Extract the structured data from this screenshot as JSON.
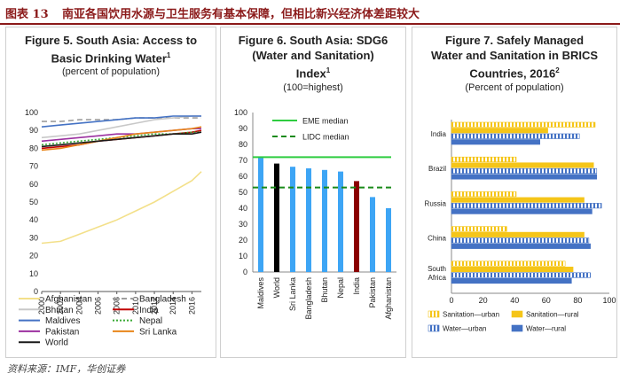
{
  "header": {
    "figure_no": "图表 13",
    "title": "南亚各国饮用水源与卫生服务有基本保障，但相比新兴经济体差距较大"
  },
  "source": "资料来源：IMF，华创证券",
  "chart_data": [
    {
      "type": "line",
      "title": "Figure 5. South Asia: Access to Basic Drinking Water",
      "title_line1": "Figure 5. South Asia: Access to",
      "title_line2": "Basic Drinking Water",
      "title_sup": "1",
      "subtitle": "(percent of population)",
      "x": [
        2000,
        2002,
        2004,
        2006,
        2008,
        2010,
        2012,
        2014,
        2016,
        2017
      ],
      "x_ticks": [
        2000,
        2002,
        2004,
        2006,
        2008,
        2010,
        2012,
        2014,
        2016
      ],
      "ylim": [
        0,
        100
      ],
      "y_ticks": [
        0,
        10,
        20,
        30,
        40,
        50,
        60,
        70,
        80,
        90,
        100
      ],
      "series": [
        {
          "name": "Afghanistan",
          "color": "#f3e08a",
          "dash": "solid",
          "values": [
            27,
            28,
            32,
            36,
            40,
            45,
            50,
            56,
            62,
            67
          ]
        },
        {
          "name": "Bangladesh",
          "color": "#9e9e9e",
          "dash": "dash",
          "values": [
            95,
            95,
            96,
            96,
            96,
            97,
            97,
            97,
            97,
            97
          ]
        },
        {
          "name": "Bhutan",
          "color": "#c8c8c8",
          "dash": "solid",
          "values": [
            86,
            87,
            88,
            90,
            92,
            94,
            96,
            97,
            98,
            98
          ]
        },
        {
          "name": "India",
          "color": "#c00000",
          "dash": "solid",
          "values": [
            80,
            81,
            82,
            84,
            85,
            86,
            87,
            88,
            89,
            90
          ]
        },
        {
          "name": "Maldives",
          "color": "#4472c4",
          "dash": "solid",
          "values": [
            92,
            93,
            94,
            95,
            96,
            97,
            97,
            98,
            98,
            98
          ]
        },
        {
          "name": "Nepal",
          "color": "#3aaa35",
          "dash": "dot",
          "values": [
            82,
            83,
            84,
            85,
            86,
            87,
            88,
            88,
            89,
            89
          ]
        },
        {
          "name": "Pakistan",
          "color": "#9b30a0",
          "dash": "solid",
          "values": [
            84,
            85,
            86,
            87,
            88,
            88,
            89,
            90,
            91,
            91
          ]
        },
        {
          "name": "Sri Lanka",
          "color": "#e8851a",
          "dash": "solid",
          "values": [
            79,
            80,
            82,
            84,
            86,
            88,
            89,
            90,
            91,
            92
          ]
        },
        {
          "name": "World",
          "color": "#1a1a1a",
          "dash": "solid",
          "values": [
            81,
            82,
            83,
            84,
            85,
            86,
            87,
            88,
            88,
            89
          ]
        }
      ]
    },
    {
      "type": "bar",
      "title": "Figure 6. South Asia: SDG6 (Water and Sanitation) Index",
      "title_line1": "Figure 6. South Asia: SDG6",
      "title_line2": "(Water and Sanitation)",
      "title_line3": "Index",
      "title_sup": "1",
      "subtitle": "(100=highest)",
      "categories": [
        "Maldives",
        "World",
        "Sri Lanka",
        "Bangladesh",
        "Bhutan",
        "Nepal",
        "India",
        "Pakistan",
        "Afghanistan"
      ],
      "values": [
        72,
        68,
        66,
        65,
        64,
        63,
        57,
        47,
        40
      ],
      "bar_colors": [
        "#3da5f5",
        "#000000",
        "#3da5f5",
        "#3da5f5",
        "#3da5f5",
        "#3da5f5",
        "#8b0000",
        "#3da5f5",
        "#3da5f5"
      ],
      "ylim": [
        0,
        100
      ],
      "y_ticks": [
        0,
        10,
        20,
        30,
        40,
        50,
        60,
        70,
        80,
        90,
        100
      ],
      "reference_lines": [
        {
          "name": "EME median",
          "value": 72,
          "color": "#2ecc40",
          "dash": "solid"
        },
        {
          "name": "LIDC median",
          "value": 53,
          "color": "#1a8a1a",
          "dash": "dash"
        }
      ]
    },
    {
      "type": "bar",
      "orientation": "horizontal",
      "title": "Figure 7. Safely Managed Water and Sanitation in BRICS Countries, 2016",
      "title_line1": "Figure 7. Safely Managed",
      "title_line2": "Water and Sanitation in BRICS",
      "title_line3": "Countries, 2016",
      "title_sup": "2",
      "subtitle": "(Percent of population)",
      "categories": [
        "India",
        "Brazil",
        "Russia",
        "China",
        "South Africa"
      ],
      "category_lines": [
        [
          "India"
        ],
        [
          "Brazil"
        ],
        [
          "Russia"
        ],
        [
          "China"
        ],
        [
          "South",
          "Africa"
        ]
      ],
      "xlim": [
        0,
        100
      ],
      "x_ticks": [
        0,
        20,
        40,
        60,
        80,
        100
      ],
      "series": [
        {
          "name": "Sanitation—urban",
          "color": "#f5c518",
          "pattern": "hatch",
          "values": [
            91,
            41,
            41,
            35,
            72
          ]
        },
        {
          "name": "Sanitation—rural",
          "color": "#f5c518",
          "pattern": "solid",
          "values": [
            61,
            90,
            84,
            84,
            77
          ]
        },
        {
          "name": "Water—urban",
          "color": "#4472c4",
          "pattern": "hatch",
          "values": [
            81,
            92,
            95,
            87,
            88
          ]
        },
        {
          "name": "Water—rural",
          "color": "#4472c4",
          "pattern": "solid",
          "values": [
            56,
            92,
            89,
            88,
            76
          ]
        }
      ]
    }
  ]
}
